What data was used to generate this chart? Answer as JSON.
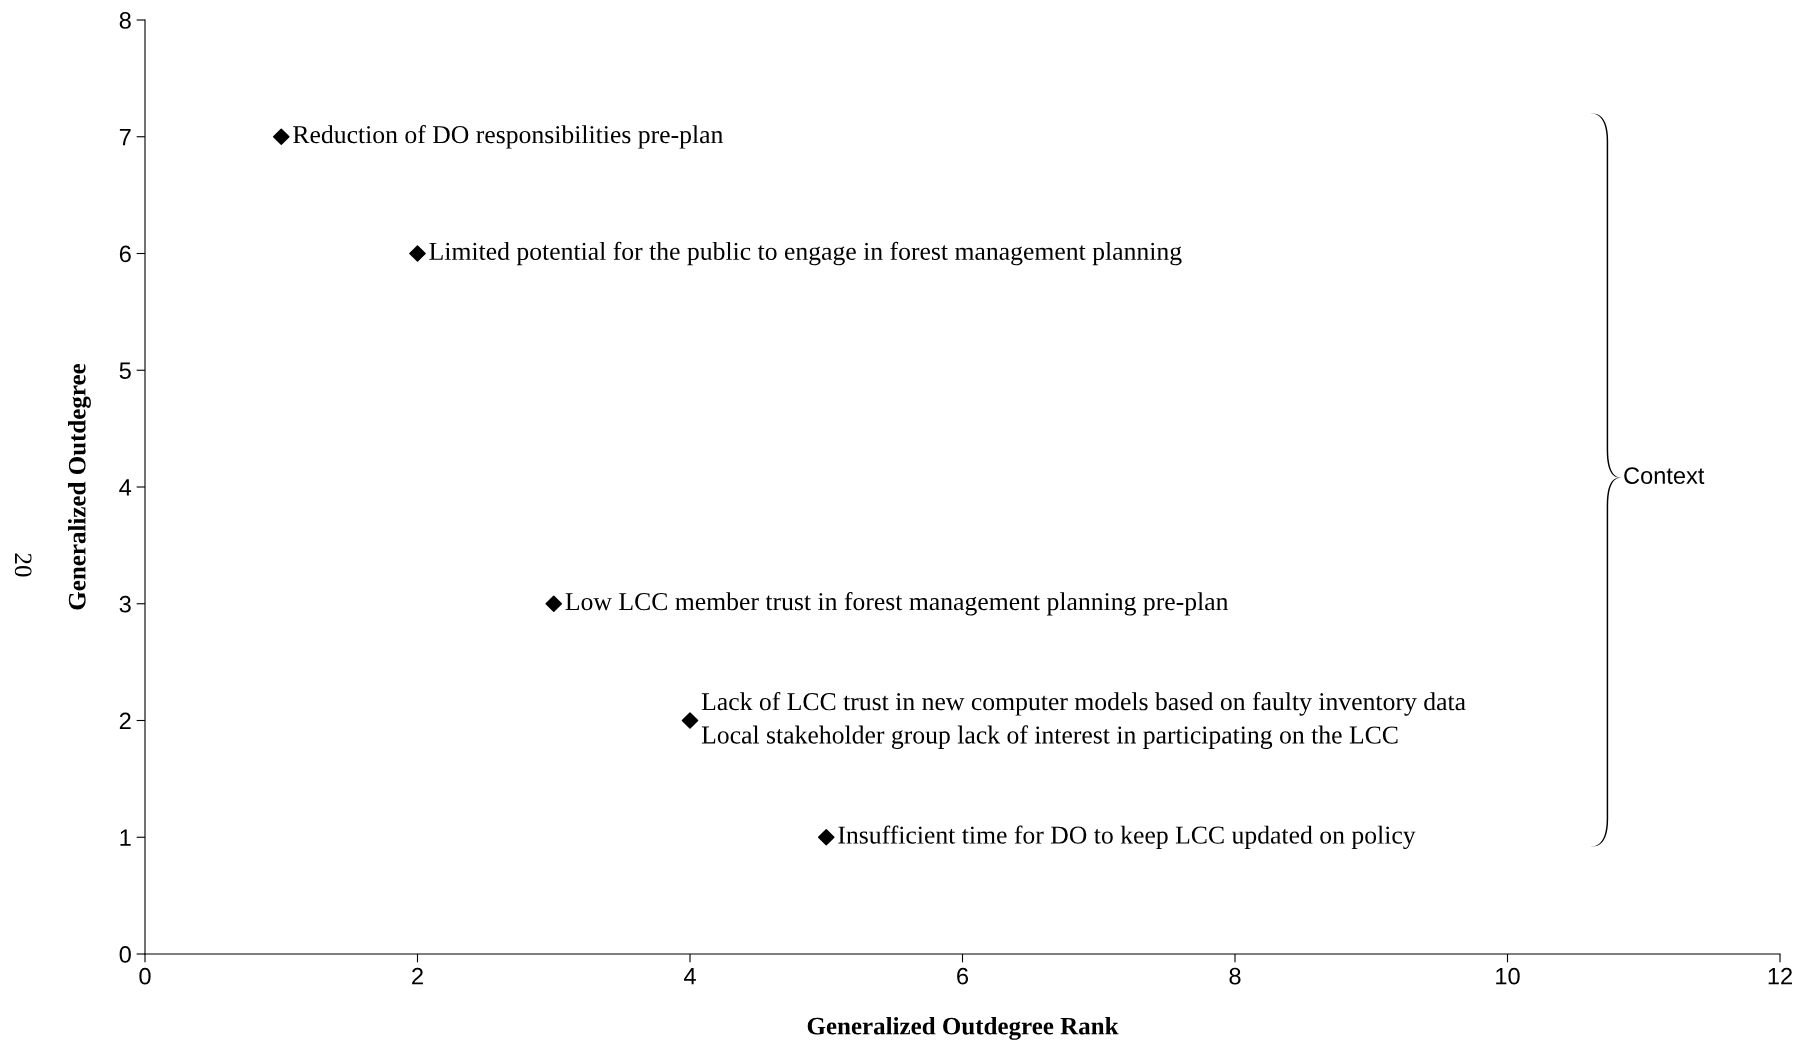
{
  "chart_data": {
    "type": "scatter",
    "xlabel": "Generalized Outdegree Rank",
    "ylabel": "Generalized Outdegree",
    "x": [
      1,
      2,
      3,
      4,
      5
    ],
    "values": [
      7,
      6,
      3,
      2,
      1
    ],
    "color": "#000000",
    "marker": "diamond",
    "xlim": [
      0,
      12
    ],
    "xticks": [
      0,
      2,
      4,
      6,
      8,
      10,
      12
    ],
    "ylim": [
      0,
      8
    ],
    "yticks": [
      0,
      1,
      2,
      3,
      4,
      5,
      6,
      7,
      8
    ],
    "grid": false,
    "legend": false,
    "annotations": [
      {
        "text": "Reduction of DO responsibilities pre-plan",
        "x": 1,
        "y": 7
      },
      {
        "text": "Limited potential for the public to engage in forest management planning",
        "x": 2,
        "y": 6
      },
      {
        "text": "Low LCC member trust in forest management planning pre-plan",
        "x": 3,
        "y": 3
      },
      {
        "text": "Lack of LCC trust in new computer models based on faulty inventory data",
        "x": 4,
        "y": 2
      },
      {
        "text": "Local stakeholder group lack of interest in participating on the LCC",
        "x": 4,
        "y": 2
      },
      {
        "text": "Insufficient time for DO to keep LCC updated on policy",
        "x": 5,
        "y": 1
      },
      "Context",
      "20"
    ]
  }
}
